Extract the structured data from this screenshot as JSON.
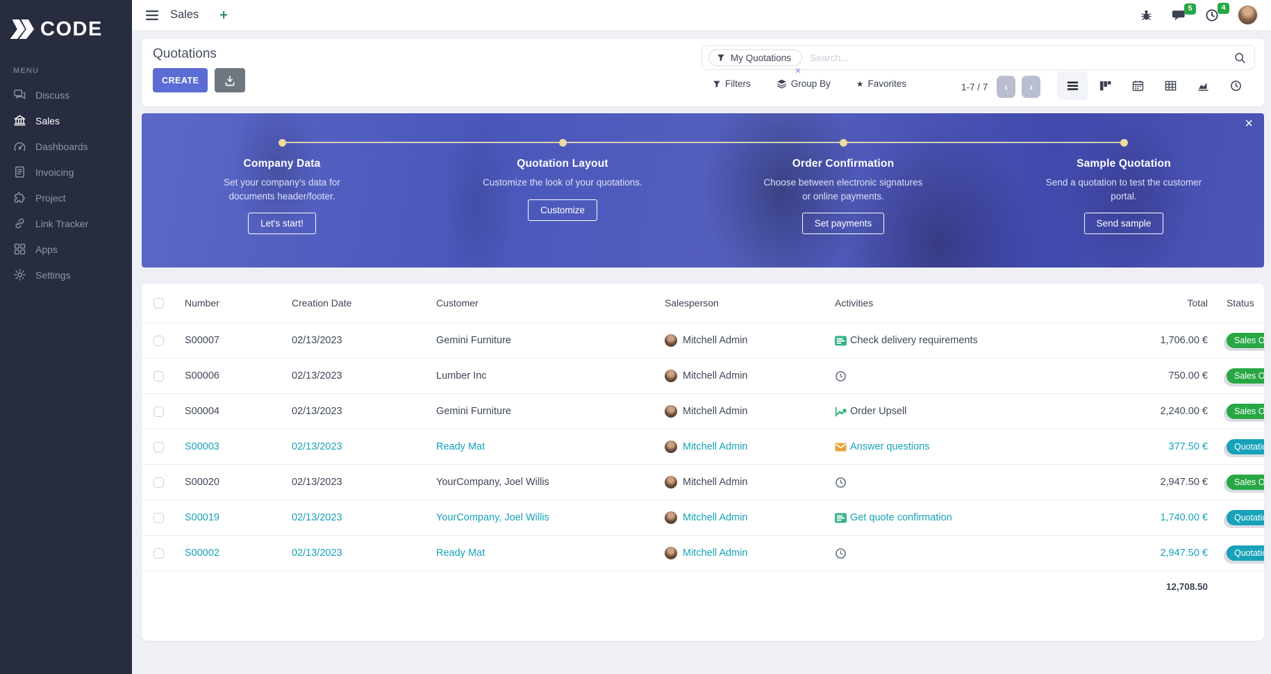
{
  "topbar": {
    "title": "Sales",
    "message_count": "5",
    "activity_count": "4"
  },
  "glyphs": {
    "plus": "+",
    "close": "×",
    "facet_remove": "✕",
    "star": "★",
    "chevron_left": "‹",
    "chevron_right": "›"
  },
  "sidebar": {
    "logo_text": "CODE",
    "menu_label": "MENU",
    "items": [
      {
        "label": "Discuss",
        "icon": "discuss",
        "active": false
      },
      {
        "label": "Sales",
        "icon": "sales",
        "active": true
      },
      {
        "label": "Dashboards",
        "icon": "dashboards",
        "active": false
      },
      {
        "label": "Invoicing",
        "icon": "invoicing",
        "active": false
      },
      {
        "label": "Project",
        "icon": "project",
        "active": false
      },
      {
        "label": "Link Tracker",
        "icon": "link",
        "active": false
      },
      {
        "label": "Apps",
        "icon": "apps",
        "active": false
      },
      {
        "label": "Settings",
        "icon": "settings",
        "active": false
      }
    ]
  },
  "control_panel": {
    "title": "Quotations",
    "create_label": "CREATE",
    "facet_label": "My Quotations",
    "search_placeholder": "Search...",
    "filters_label": "Filters",
    "group_by_label": "Group By",
    "favorites_label": "Favorites",
    "pager": "1-7 / 7"
  },
  "banner": {
    "steps": [
      {
        "title": "Company Data",
        "desc": "Set your company's data for documents header/footer.",
        "button": "Let's start!"
      },
      {
        "title": "Quotation Layout",
        "desc": "Customize the look of your quotations.",
        "button": "Customize"
      },
      {
        "title": "Order Confirmation",
        "desc": "Choose between electronic signatures or online payments.",
        "button": "Set payments"
      },
      {
        "title": "Sample Quotation",
        "desc": "Send a quotation to test the customer portal.",
        "button": "Send sample"
      }
    ]
  },
  "table": {
    "headers": {
      "number": "Number",
      "creation_date": "Creation Date",
      "customer": "Customer",
      "salesperson": "Salesperson",
      "activities": "Activities",
      "total": "Total",
      "status": "Status"
    },
    "rows": [
      {
        "number": "S00007",
        "creation_date": "02/13/2023",
        "customer": "Gemini Furniture",
        "salesperson": "Mitchell Admin",
        "activity_icon": "tasks",
        "activity": "Check delivery requirements",
        "total": "1,706.00 €",
        "status": "Sales Order",
        "status_color": "green",
        "highlighted": false
      },
      {
        "number": "S00006",
        "creation_date": "02/13/2023",
        "customer": "Lumber Inc",
        "salesperson": "Mitchell Admin",
        "activity_icon": "clock",
        "activity": "",
        "total": "750.00 €",
        "status": "Sales Order",
        "status_color": "green",
        "highlighted": false
      },
      {
        "number": "S00004",
        "creation_date": "02/13/2023",
        "customer": "Gemini Furniture",
        "salesperson": "Mitchell Admin",
        "activity_icon": "chart",
        "activity": "Order Upsell",
        "total": "2,240.00 €",
        "status": "Sales Order",
        "status_color": "green",
        "highlighted": false
      },
      {
        "number": "S00003",
        "creation_date": "02/13/2023",
        "customer": "Ready Mat",
        "salesperson": "Mitchell Admin",
        "activity_icon": "mail",
        "activity": "Answer questions",
        "total": "377.50 €",
        "status": "Quotation",
        "status_color": "teal",
        "highlighted": true
      },
      {
        "number": "S00020",
        "creation_date": "02/13/2023",
        "customer": "YourCompany, Joel Willis",
        "salesperson": "Mitchell Admin",
        "activity_icon": "clock",
        "activity": "",
        "total": "2,947.50 €",
        "status": "Sales Order",
        "status_color": "green",
        "highlighted": false
      },
      {
        "number": "S00019",
        "creation_date": "02/13/2023",
        "customer": "YourCompany, Joel Willis",
        "salesperson": "Mitchell Admin",
        "activity_icon": "tasks",
        "activity": "Get quote confirmation",
        "total": "1,740.00 €",
        "status": "Quotation",
        "status_color": "teal",
        "highlighted": true
      },
      {
        "number": "S00002",
        "creation_date": "02/13/2023",
        "customer": "Ready Mat",
        "salesperson": "Mitchell Admin",
        "activity_icon": "clock",
        "activity": "",
        "total": "2,947.50 €",
        "status": "Quotation",
        "status_color": "teal",
        "highlighted": true
      }
    ],
    "footer_total": "12,708.50"
  },
  "colors": {
    "primary": "#5b6cd4",
    "teal": "#17a2b8",
    "green": "#28a745",
    "sidebar_bg": "#272c3f",
    "banner_blue": "#4c58b8"
  }
}
